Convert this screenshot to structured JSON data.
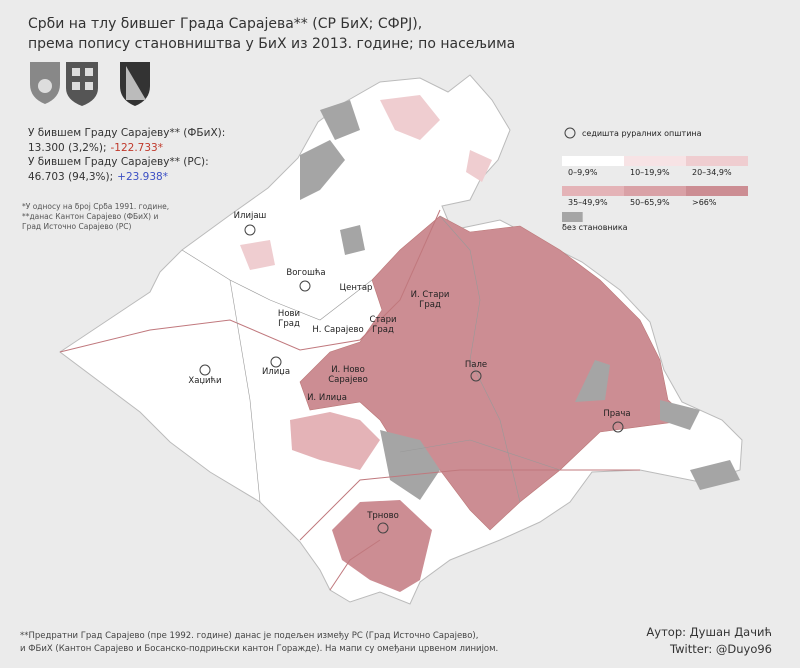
{
  "header": {
    "title_lines": [
      "Срби на тлу бившег Града Сарајева** (СР БиХ; СФРЈ),",
      "према попису становништва у БиХ из 2013. године; по насељима"
    ]
  },
  "stats": [
    {
      "label": "У бившем Граду Сарајеву** (ФБиХ):",
      "value": "13.300 (3,2%);",
      "change": "-122.733*",
      "change_color": "#c0392b"
    },
    {
      "label": "У бившем Граду Сарајеву** (РС):",
      "value": "46.703 (94,3%);",
      "change": "+23.938*",
      "change_color": "#3b4fc4"
    }
  ],
  "notes": [
    "*У односу на број Срба 1991. године,",
    "**данас Кантон Сарајево (ФБиХ) и",
    "Град Источно Сарајево (РС)"
  ],
  "legend": {
    "seat_label": "седишта руралних општина",
    "items": [
      {
        "label": "0–9,9%",
        "color": "#ffffff"
      },
      {
        "label": "10–19,9%",
        "color": "#f7e3e5"
      },
      {
        "label": "20–34,9%",
        "color": "#efcdd0"
      },
      {
        "label": "35–49,9%",
        "color": "#e4b3b7"
      },
      {
        "label": "50–65,9%",
        "color": "#d9a1a6"
      },
      {
        "label": ">66%",
        "color": "#cc8d93"
      }
    ],
    "empty": {
      "label": "без становника",
      "color": "#a5a5a5"
    }
  },
  "places": [
    {
      "lines": [
        "Илијаш"
      ]
    },
    {
      "lines": [
        "Вогошћа"
      ]
    },
    {
      "lines": [
        "Центар"
      ]
    },
    {
      "lines": [
        "Нови",
        "Град"
      ]
    },
    {
      "lines": [
        "Н. Сарајево"
      ]
    },
    {
      "lines": [
        "Стари",
        "Град"
      ]
    },
    {
      "lines": [
        "И. Стари",
        "Град"
      ]
    },
    {
      "lines": [
        "Пале"
      ]
    },
    {
      "lines": [
        "Хаџићи"
      ]
    },
    {
      "lines": [
        "Илиџа"
      ]
    },
    {
      "lines": [
        "И. Ново",
        "Сарајево"
      ]
    },
    {
      "lines": [
        "И. Илиџа"
      ]
    },
    {
      "lines": [
        "Трново"
      ]
    },
    {
      "lines": [
        "Прача"
      ]
    }
  ],
  "footer": {
    "notes": [
      "**Предратни Град Сарајево (пре 1992. године) данас је подељен између РС (Град Источно Сарајево),",
      "и ФБиХ (Кантон Сарајево и Босанско-подрињски кантон Горажде). На мапи су омеђани црвеном линијом."
    ],
    "author": "Аутор: Душан Дачић",
    "twitter": "Twitter: @Duyo96"
  }
}
